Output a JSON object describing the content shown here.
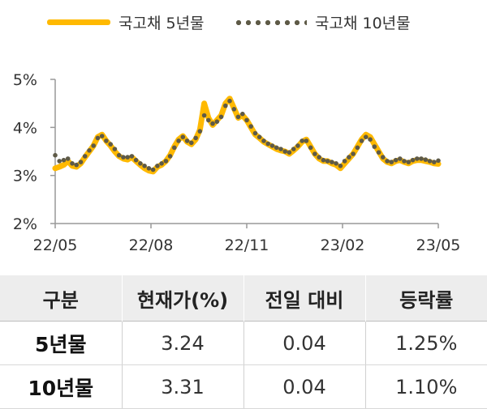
{
  "legend": {
    "series1": "국고채 5년물",
    "series2": "국고채 10년물"
  },
  "colors": {
    "series1": "#FFB900",
    "series2": "#5E5A47",
    "axis": "#999999"
  },
  "chart_data": {
    "type": "line",
    "x_tick_labels": [
      "22/05",
      "22/08",
      "22/11",
      "23/02",
      "23/05"
    ],
    "y_tick_labels": [
      "2%",
      "3%",
      "4%",
      "5%"
    ],
    "ylim": [
      2,
      5
    ],
    "y_unit": "%",
    "grid": false,
    "legend_position": "top",
    "series": [
      {
        "name": "국고채 5년물",
        "style": "solid",
        "values": [
          3.15,
          3.18,
          3.22,
          3.3,
          3.2,
          3.18,
          3.25,
          3.38,
          3.5,
          3.62,
          3.8,
          3.85,
          3.72,
          3.62,
          3.5,
          3.4,
          3.35,
          3.33,
          3.38,
          3.3,
          3.22,
          3.15,
          3.1,
          3.08,
          3.18,
          3.22,
          3.3,
          3.42,
          3.6,
          3.75,
          3.82,
          3.7,
          3.65,
          3.75,
          3.95,
          4.5,
          4.2,
          4.05,
          4.15,
          4.25,
          4.5,
          4.6,
          4.4,
          4.2,
          4.25,
          4.15,
          4.0,
          3.85,
          3.78,
          3.7,
          3.65,
          3.6,
          3.55,
          3.52,
          3.5,
          3.45,
          3.52,
          3.6,
          3.7,
          3.75,
          3.6,
          3.45,
          3.35,
          3.3,
          3.3,
          3.25,
          3.22,
          3.15,
          3.25,
          3.35,
          3.45,
          3.6,
          3.75,
          3.85,
          3.8,
          3.65,
          3.5,
          3.35,
          3.28,
          3.25,
          3.3,
          3.32,
          3.28,
          3.25,
          3.3,
          3.32,
          3.32,
          3.3,
          3.28,
          3.25,
          3.24
        ]
      },
      {
        "name": "국고채 10년물",
        "style": "dotted",
        "values": [
          3.42,
          3.3,
          3.32,
          3.35,
          3.25,
          3.22,
          3.28,
          3.4,
          3.52,
          3.62,
          3.78,
          3.82,
          3.72,
          3.65,
          3.55,
          3.42,
          3.38,
          3.38,
          3.4,
          3.32,
          3.25,
          3.2,
          3.15,
          3.12,
          3.2,
          3.25,
          3.3,
          3.4,
          3.58,
          3.72,
          3.8,
          3.72,
          3.68,
          3.78,
          3.92,
          4.25,
          4.15,
          4.08,
          4.12,
          4.22,
          4.45,
          4.55,
          4.38,
          4.22,
          4.28,
          4.15,
          4.02,
          3.88,
          3.8,
          3.72,
          3.66,
          3.62,
          3.58,
          3.55,
          3.5,
          3.48,
          3.55,
          3.62,
          3.72,
          3.72,
          3.58,
          3.45,
          3.38,
          3.32,
          3.3,
          3.28,
          3.25,
          3.2,
          3.3,
          3.38,
          3.45,
          3.58,
          3.72,
          3.8,
          3.75,
          3.6,
          3.48,
          3.38,
          3.3,
          3.28,
          3.32,
          3.35,
          3.3,
          3.28,
          3.32,
          3.35,
          3.35,
          3.33,
          3.3,
          3.28,
          3.31
        ]
      }
    ]
  },
  "table": {
    "headers": [
      "구분",
      "현재가(%)",
      "전일 대비",
      "등락률"
    ],
    "rows": [
      [
        "5년물",
        "3.24",
        "0.04",
        "1.25%"
      ],
      [
        "10년물",
        "3.31",
        "0.04",
        "1.10%"
      ]
    ]
  }
}
